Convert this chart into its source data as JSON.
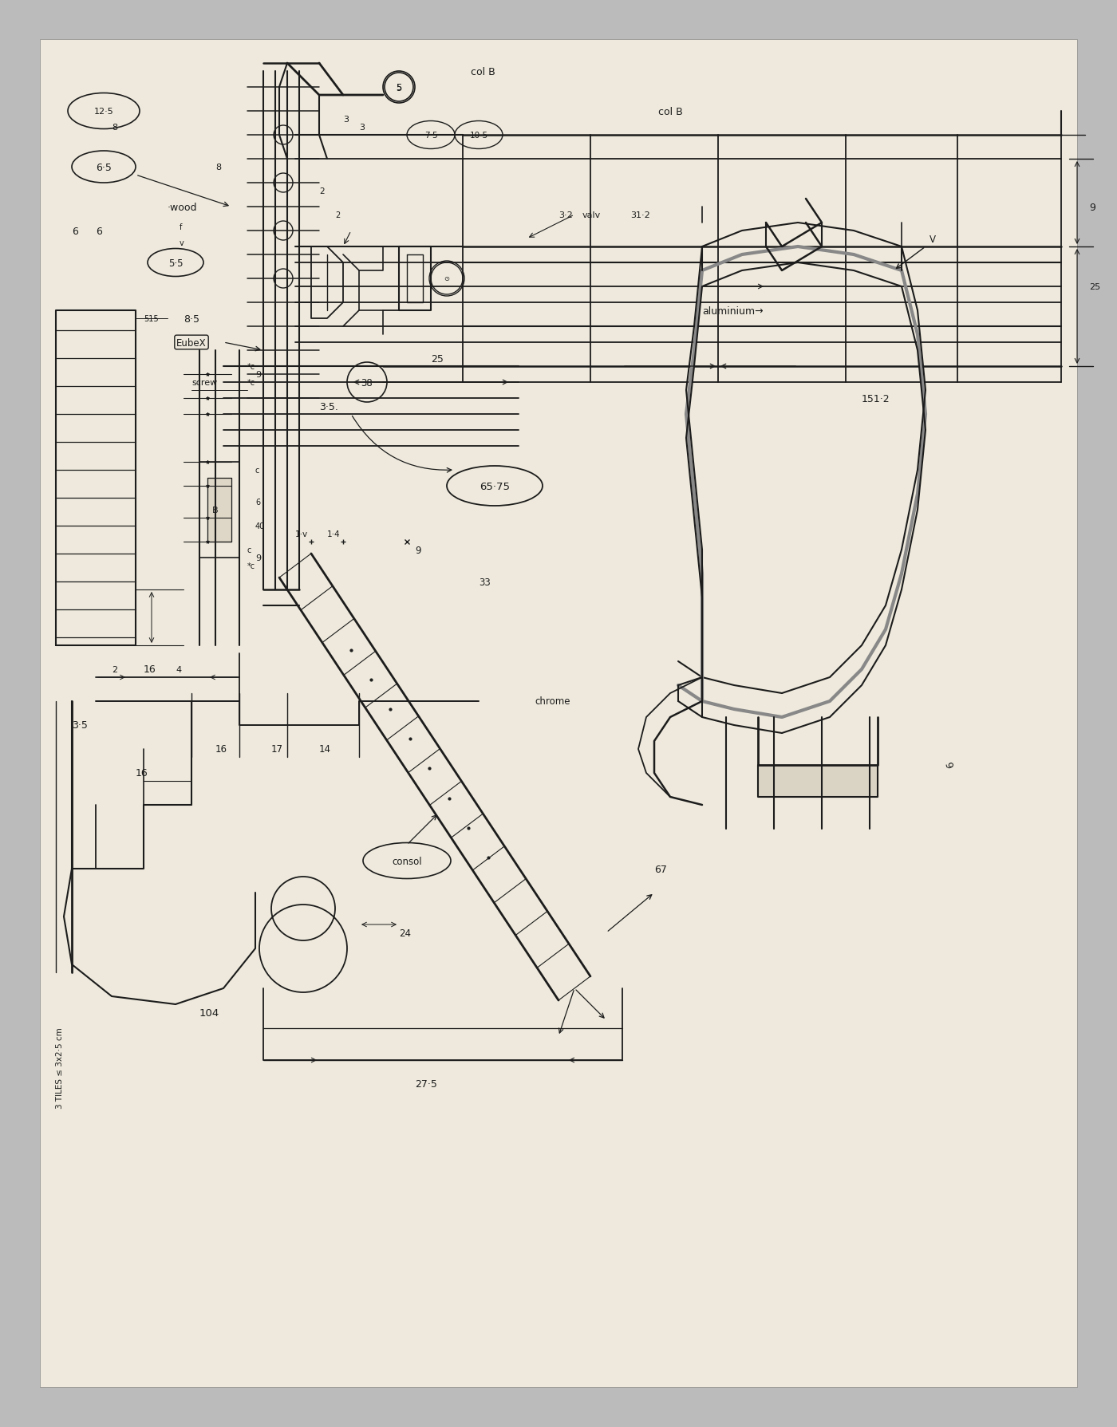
{
  "bg_outer": "#BBBBBB",
  "bg_paper": "#EEE9DC",
  "ink": "#1C1C1C",
  "figsize": [
    14.0,
    17.9
  ],
  "dpi": 100,
  "xlim": [
    0,
    140
  ],
  "ylim": [
    0,
    179
  ]
}
